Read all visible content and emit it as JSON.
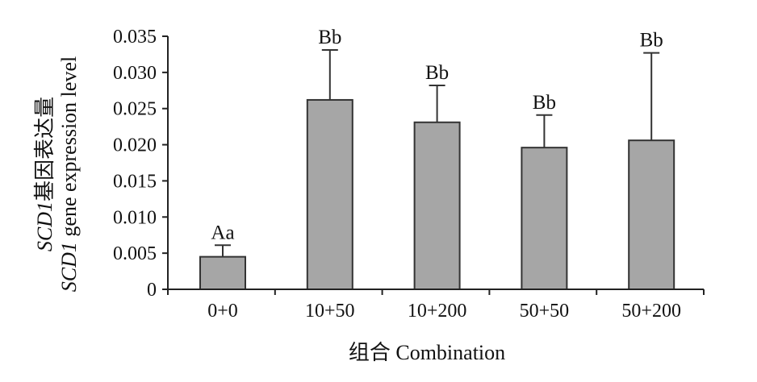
{
  "chart_data": {
    "type": "bar",
    "categories": [
      "0+0",
      "10+50",
      "10+200",
      "50+50",
      "50+200"
    ],
    "values": [
      0.0045,
      0.0262,
      0.0231,
      0.0196,
      0.0206
    ],
    "error_upper": [
      0.0061,
      0.0331,
      0.0282,
      0.0241,
      0.0327
    ],
    "significance_labels": [
      "Aa",
      "Bb",
      "Bb",
      "Bb",
      "Bb"
    ],
    "ylim": [
      0,
      0.035
    ],
    "yticks": [
      "0",
      "0.005",
      "0.010",
      "0.015",
      "0.020",
      "0.025",
      "0.030",
      "0.035"
    ],
    "ytick_values": [
      0,
      0.005,
      0.01,
      0.015,
      0.02,
      0.025,
      0.03,
      0.035
    ],
    "xlabel": "组合 Combination",
    "ylabel": {
      "line1_italic": "SCD1",
      "line1_rest": "基因表达量",
      "line2_italic": "SCD1",
      "line2_rest": " gene expression level"
    },
    "bar_color": "#a6a6a6",
    "edge_color": "#333333",
    "grid": false
  }
}
